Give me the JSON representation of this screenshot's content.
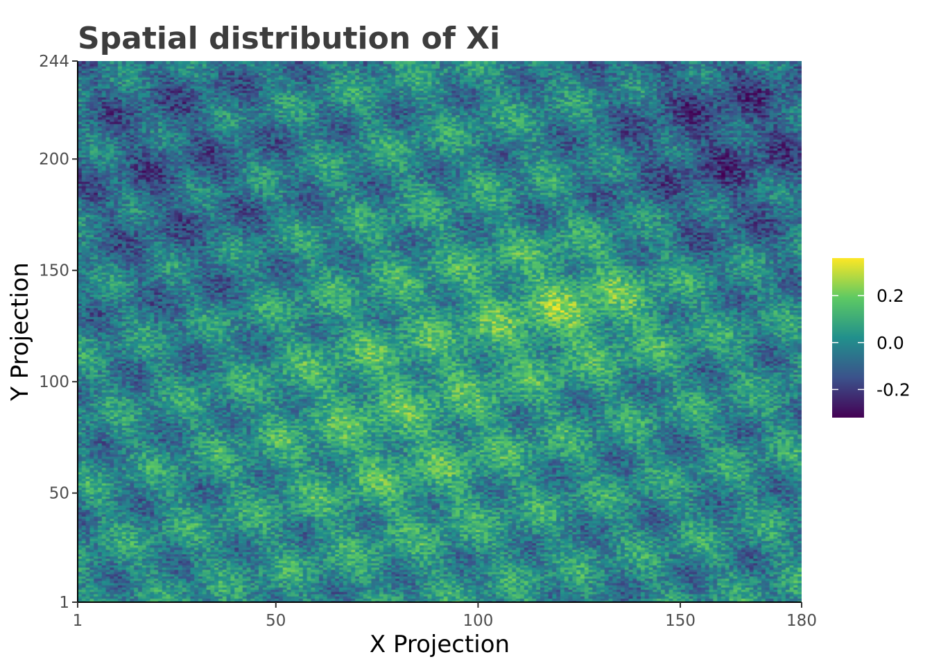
{
  "chart_data": {
    "type": "heatmap",
    "title": "Spatial distribution of Xi",
    "xlabel": "X Projection",
    "ylabel": "Y Projection",
    "xlim": [
      1,
      180
    ],
    "ylim": [
      1,
      244
    ],
    "x_ticks": [
      1,
      50,
      100,
      150,
      180
    ],
    "y_ticks": [
      1,
      50,
      100,
      150,
      200,
      244
    ],
    "value_range": [
      -0.32,
      0.36
    ],
    "colorbar": {
      "ticks": [
        0.2,
        0.0,
        -0.2
      ],
      "tick_labels": [
        "0.2",
        "0.0",
        "-0.2"
      ],
      "colormap": "viridis",
      "colors": [
        "#440154",
        "#3b528b",
        "#21908c",
        "#5dc963",
        "#fde725"
      ]
    },
    "approximate_regions": [
      {
        "x_range": [
          110,
          140
        ],
        "y_range": [
          120,
          150
        ],
        "mean_value": 0.15
      },
      {
        "x_range": [
          60,
          100
        ],
        "y_range": [
          50,
          120
        ],
        "mean_value": 0.1
      },
      {
        "x_range": [
          145,
          180
        ],
        "y_range": [
          180,
          244
        ],
        "mean_value": -0.15
      },
      {
        "x_range": [
          1,
          40
        ],
        "y_range": [
          160,
          244
        ],
        "mean_value": -0.1
      }
    ],
    "legend_position": "right",
    "grid": false
  }
}
